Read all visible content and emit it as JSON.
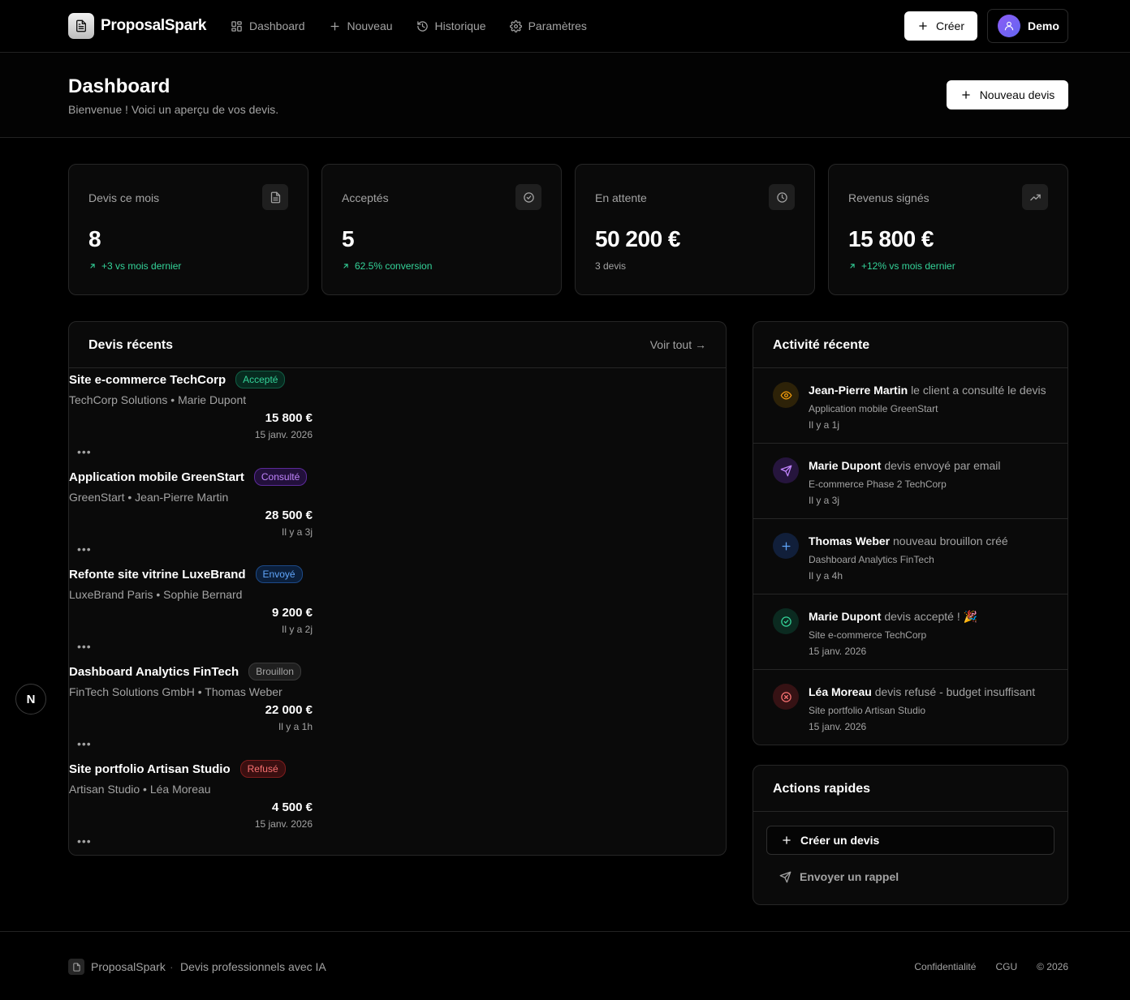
{
  "app": {
    "name": "ProposalSpark"
  },
  "nav": [
    {
      "label": "Dashboard",
      "icon": "grid-icon"
    },
    {
      "label": "Nouveau",
      "icon": "plus-icon"
    },
    {
      "label": "Historique",
      "icon": "history-icon"
    },
    {
      "label": "Paramètres",
      "icon": "gear-icon"
    }
  ],
  "header": {
    "create_label": "Créer",
    "user_label": "Demo"
  },
  "page": {
    "title": "Dashboard",
    "subtitle": "Bienvenue ! Voici un aperçu de vos devis.",
    "new_quote_label": "Nouveau devis"
  },
  "stats": [
    {
      "label": "Devis ce mois",
      "value": "8",
      "sub": "+3 vs mois dernier",
      "tone": "green",
      "icon": "document-icon"
    },
    {
      "label": "Acceptés",
      "value": "5",
      "sub": "62.5% conversion",
      "tone": "green",
      "icon": "check-circle-icon"
    },
    {
      "label": "En attente",
      "value": "50 200 €",
      "sub": "3 devis",
      "tone": "gray",
      "icon": "clock-icon"
    },
    {
      "label": "Revenus signés",
      "value": "15 800 €",
      "sub": "+12% vs mois dernier",
      "tone": "green",
      "icon": "trending-up-icon"
    }
  ],
  "recent": {
    "title": "Devis récents",
    "see_all": "Voir tout →",
    "more_label": "•••",
    "items": [
      {
        "title": "Site e-commerce TechCorp",
        "status": "Accepté",
        "client": "TechCorp Solutions • Marie Dupont",
        "amount": "15 800 €",
        "date": "15 janv. 2026"
      },
      {
        "title": "Application mobile GreenStart",
        "status": "Consulté",
        "client": "GreenStart • Jean-Pierre Martin",
        "amount": "28 500 €",
        "date": "Il y a 3j"
      },
      {
        "title": "Refonte site vitrine LuxeBrand",
        "status": "Envoyé",
        "client": "LuxeBrand Paris • Sophie Bernard",
        "amount": "9 200 €",
        "date": "Il y a 2j"
      },
      {
        "title": "Dashboard Analytics FinTech",
        "status": "Brouillon",
        "client": "FinTech Solutions GmbH • Thomas Weber",
        "amount": "22 000 €",
        "date": "Il y a 1h"
      },
      {
        "title": "Site portfolio Artisan Studio",
        "status": "Refusé",
        "client": "Artisan Studio • Léa Moreau",
        "amount": "4 500 €",
        "date": "15 janv. 2026"
      }
    ]
  },
  "activity": {
    "title": "Activité récente",
    "items": [
      {
        "name": "Jean-Pierre Martin",
        "action": "le client a consulté le devis",
        "project": "Application mobile GreenStart",
        "time": "Il y a 1j",
        "icon": "eye-icon",
        "color": "#f59e0b"
      },
      {
        "name": "Marie Dupont",
        "action": "devis envoyé par email",
        "project": "E-commerce Phase 2 TechCorp",
        "time": "Il y a 3j",
        "icon": "send-icon",
        "color": "#c084fc"
      },
      {
        "name": "Thomas Weber",
        "action": "nouveau brouillon créé",
        "project": "Dashboard Analytics FinTech",
        "time": "Il y a 4h",
        "icon": "plus-icon",
        "color": "#60a5fa"
      },
      {
        "name": "Marie Dupont",
        "action": "devis accepté ! 🎉",
        "project": "Site e-commerce TechCorp",
        "time": "15 janv. 2026",
        "icon": "check-circle-icon",
        "color": "#34d399"
      },
      {
        "name": "Léa Moreau",
        "action": "devis refusé - budget insuffisant",
        "project": "Site portfolio Artisan Studio",
        "time": "15 janv. 2026",
        "icon": "x-circle-icon",
        "color": "#f87171"
      }
    ]
  },
  "quick_actions": {
    "title": "Actions rapides",
    "create_label": "Créer un devis",
    "remind_label": "Envoyer un rappel"
  },
  "dev_badge": "N",
  "footer": {
    "brand": "ProposalSpark",
    "separator": "·",
    "tagline": "Devis professionnels avec IA",
    "links": [
      "Confidentialité",
      "CGU",
      "© 2026"
    ]
  }
}
